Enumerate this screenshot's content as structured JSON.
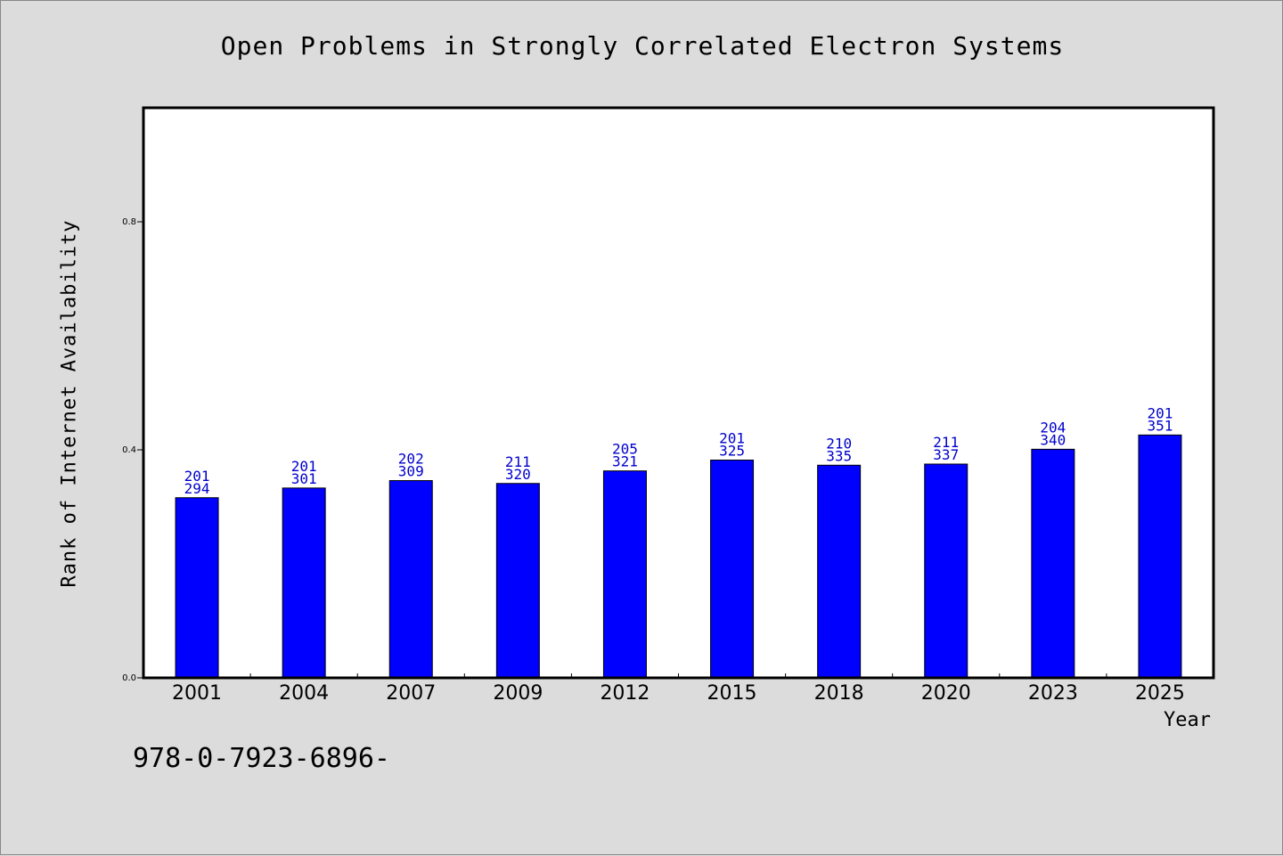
{
  "chart_data": {
    "type": "bar",
    "title": "Open Problems in Strongly Correlated Electron Systems",
    "xlabel": "Year",
    "ylabel": "Rank of Internet Availability",
    "categories": [
      "2001",
      "2004",
      "2007",
      "2009",
      "2012",
      "2015",
      "2018",
      "2020",
      "2023",
      "2025"
    ],
    "values": [
      0.316,
      0.333,
      0.346,
      0.341,
      0.363,
      0.382,
      0.373,
      0.375,
      0.401,
      0.426
    ],
    "label_top": [
      "201",
      "201",
      "202",
      "211",
      "205",
      "201",
      "210",
      "211",
      "204",
      "201"
    ],
    "label_bottom": [
      "294",
      "301",
      "309",
      "320",
      "321",
      "325",
      "335",
      "337",
      "340",
      "351"
    ],
    "ylim": [
      0,
      1.0
    ],
    "yticks": [
      0.0,
      0.4,
      0.8
    ],
    "ytick_labels": [
      "0.0",
      "0.4",
      "0.8"
    ],
    "grid": false,
    "colors": {
      "bar": "#0000ff",
      "bar_label": "#0000cc",
      "background": "#dcdcdc",
      "plot_bg": "#ffffff"
    }
  },
  "footer": {
    "code": "978-0-7923-6896-"
  }
}
